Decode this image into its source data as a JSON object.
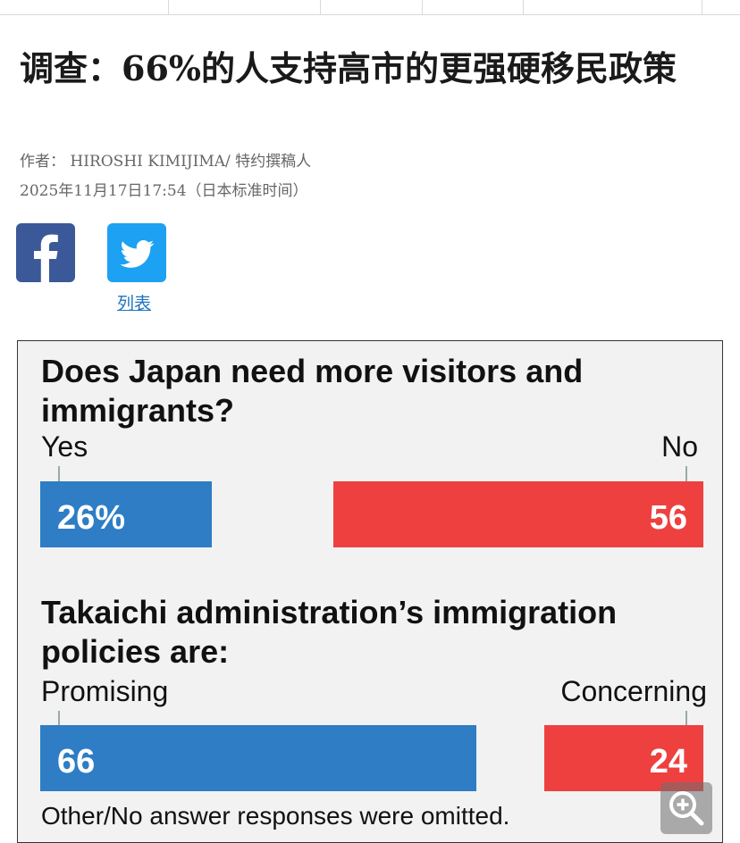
{
  "headline": "调查：66%的人支持高市的更强硬移民政策",
  "author_line": "作者：  HIROSHI KIMIJIMA/ 特约撰稿人",
  "date_line": "2025年11月17日17:54（日本标准时间）",
  "share": {
    "facebook_icon": "facebook-icon",
    "twitter_icon": "twitter-icon",
    "list_label": "列表"
  },
  "graphic": {
    "q1": {
      "title": "Does Japan need more visitors and immigrants?",
      "left_label": "Yes",
      "right_label": "No",
      "left_value": "26%",
      "right_value": "56",
      "left_pct": 26,
      "right_pct": 56
    },
    "q2": {
      "title": "Takaichi administration’s immigration policies are:",
      "left_label": "Promising",
      "right_label": "Concerning",
      "left_value": "66",
      "right_value": "24",
      "left_pct": 66,
      "right_pct": 24
    },
    "note": "Other/No answer responses were omitted.",
    "colors": {
      "yes": "#2e7dc5",
      "no": "#ef4040"
    }
  },
  "zoom_icon": "zoom-in-icon"
}
